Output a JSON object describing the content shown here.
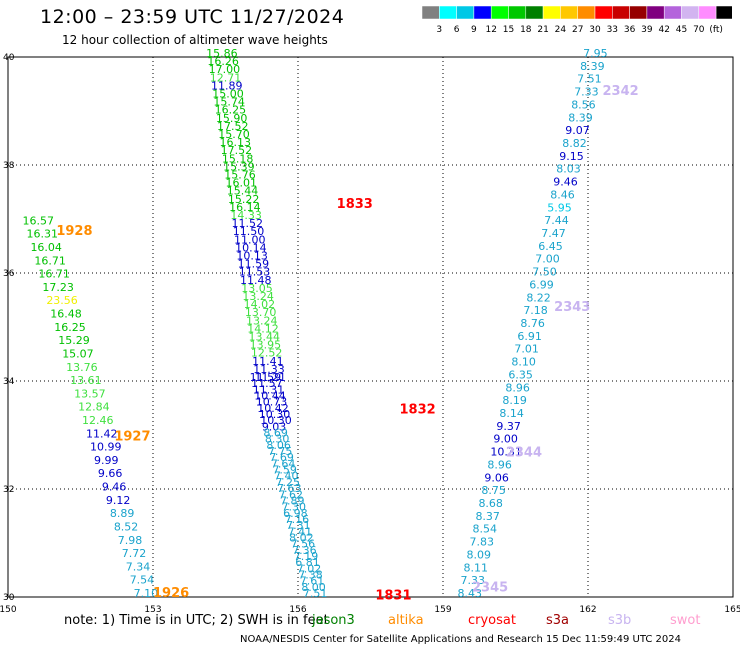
{
  "title": "12:00 – 23:59 UTC 11/27/2024",
  "subtitle": "12 hour collection of altimeter wave heights",
  "note": "note:  1) Time is in UTC; 2) SWH is in feet",
  "credit": "NOAA/NESDIS Center for Satellite Applications and Research    15 Dec 11:59:49 UTC 2024",
  "satellites": [
    {
      "name": "jason3",
      "color": "#008000"
    },
    {
      "name": "altika",
      "color": "#ff8c00"
    },
    {
      "name": "cryosat",
      "color": "#ff0000"
    },
    {
      "name": "s3a",
      "color": "#a00000"
    },
    {
      "name": "s3b",
      "color": "#c8b4f0"
    },
    {
      "name": "swot",
      "color": "#ff9ecf"
    }
  ],
  "colorbar": {
    "colors": [
      "#808080",
      "#00ffff",
      "#00c8e6",
      "#0000ff",
      "#00ff00",
      "#00c800",
      "#008000",
      "#ffff00",
      "#ffc800",
      "#ff8c00",
      "#ff0000",
      "#c80000",
      "#960000",
      "#800080",
      "#b464dc",
      "#d2b4f0",
      "#ff8cff",
      "#000000"
    ],
    "labels": [
      "3",
      "6",
      "9",
      "12",
      "15",
      "18",
      "21",
      "24",
      "27",
      "30",
      "33",
      "36",
      "39",
      "42",
      "45",
      "70",
      "(ft)"
    ]
  },
  "chart_data": {
    "type": "scatter",
    "title": "12:00 – 23:59 UTC 11/27/2024",
    "subtitle": "12 hour collection of altimeter wave heights",
    "xlim": [
      150,
      165
    ],
    "ylim": [
      30,
      40
    ],
    "xticks": [
      150,
      153,
      156,
      159,
      162,
      165
    ],
    "yticks": [
      30,
      32,
      34,
      36,
      38,
      40
    ],
    "grid": true,
    "pass_labels": [
      {
        "text": "1928",
        "x": 151.0,
        "y": 36.7,
        "color": "#ff8c00"
      },
      {
        "text": "1927",
        "x": 152.2,
        "y": 32.9,
        "color": "#ff8c00"
      },
      {
        "text": "1926",
        "x": 153.0,
        "y": 30.0,
        "color": "#ff8c00"
      },
      {
        "text": "1833",
        "x": 156.8,
        "y": 37.2,
        "color": "#ff0000"
      },
      {
        "text": "1832",
        "x": 158.1,
        "y": 33.4,
        "color": "#ff0000"
      },
      {
        "text": "1831",
        "x": 157.6,
        "y": 29.95,
        "color": "#ff0000"
      },
      {
        "text": "2342",
        "x": 162.3,
        "y": 39.3,
        "color": "#c8b4f0"
      },
      {
        "text": "2343",
        "x": 161.3,
        "y": 35.3,
        "color": "#c8b4f0"
      },
      {
        "text": "2344",
        "x": 160.3,
        "y": 32.6,
        "color": "#c8b4f0"
      },
      {
        "text": "2345",
        "x": 159.6,
        "y": 30.1,
        "color": "#c8b4f0"
      }
    ],
    "tracks": [
      {
        "id": "altika-1928-1926",
        "start": [
          150.3,
          36.9
        ],
        "end": [
          152.6,
          30.0
        ],
        "values": [
          16.57,
          16.31,
          16.04,
          16.71,
          16.71,
          17.23,
          23.56,
          16.48,
          16.25,
          15.29,
          15.07,
          13.76,
          13.61,
          13.57,
          12.84,
          12.46,
          11.42,
          10.99,
          9.99,
          9.66,
          9.46,
          9.12,
          8.89,
          8.52,
          7.98,
          7.72,
          7.34,
          7.54,
          7.1
        ]
      },
      {
        "id": "cryosat-1833",
        "start": [
          154.1,
          40.0
        ],
        "end": [
          155.1,
          34.0
        ],
        "values": [
          15.86,
          16.26,
          17.0,
          12.71,
          11.89,
          15.0,
          15.74,
          16.25,
          15.9,
          17.52,
          15.7,
          16.13,
          17.52,
          15.18,
          15.39,
          15.76,
          16.01,
          15.44,
          15.22,
          16.14,
          14.33,
          11.52,
          11.5,
          11.0,
          10.14,
          10.13,
          11.59,
          11.53,
          11.48,
          13.05,
          13.24,
          14.02,
          13.7,
          13.24,
          14.12,
          13.44,
          13.95,
          12.52,
          11.41,
          11.33,
          11.21
        ]
      },
      {
        "id": "cryosat-1832-1831",
        "start": [
          155.0,
          34.0
        ],
        "end": [
          156.1,
          30.0
        ],
        "values": [
          11.59,
          11.57,
          11.31,
          10.44,
          10.73,
          10.42,
          10.3,
          10.3,
          9.03,
          8.69,
          8.3,
          8.06,
          7.75,
          7.69,
          7.64,
          7.59,
          7.4,
          7.25,
          7.63,
          7.62,
          7.89,
          7.3,
          6.98,
          7.16,
          7.31,
          7.41,
          8.02,
          7.56,
          7.36,
          7.19,
          6.81,
          7.02,
          7.38,
          7.61,
          8.0,
          7.51
        ]
      },
      {
        "id": "s3b-2342-2345",
        "start": [
          161.9,
          40.0
        ],
        "end": [
          159.3,
          30.0
        ],
        "values": [
          7.95,
          8.39,
          7.51,
          7.33,
          8.56,
          8.39,
          9.07,
          8.82,
          9.15,
          8.03,
          9.46,
          8.46,
          5.95,
          7.44,
          7.47,
          6.45,
          7.0,
          7.5,
          6.99,
          8.22,
          7.18,
          8.76,
          6.91,
          7.01,
          8.1,
          6.35,
          8.96,
          8.19,
          8.14,
          9.37,
          9.0,
          10.31,
          8.96,
          9.06,
          8.75,
          8.68,
          8.37,
          8.54,
          7.83,
          8.09,
          8.11,
          7.33,
          8.43
        ]
      }
    ]
  }
}
